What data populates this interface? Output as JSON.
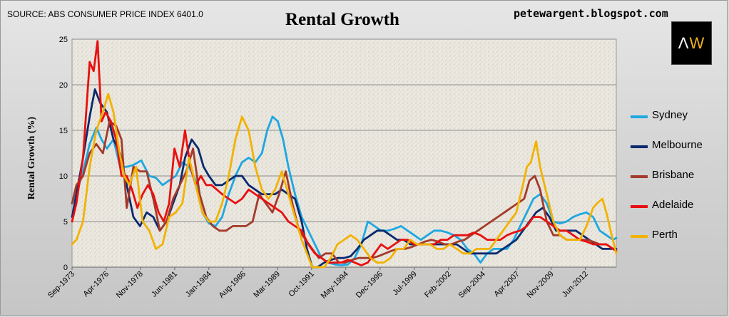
{
  "header": {
    "source": "SOURCE: ABS CONSUMER PRICE INDEX 6401.0",
    "website": "petewargent.blogspot.com",
    "logo_text": "AW"
  },
  "chart_data": {
    "type": "line",
    "title": "Rental Growth",
    "xlabel": "",
    "ylabel": "Rental Growth (%)",
    "ylim": [
      0,
      25
    ],
    "yticks": [
      0,
      5,
      10,
      15,
      20,
      25
    ],
    "xlim": [
      1973.67,
      2014.75
    ],
    "xticks": [
      {
        "label": "Sep-1973",
        "x": 1973.67
      },
      {
        "label": "Apr-1976",
        "x": 1976.25
      },
      {
        "label": "Nov-1978",
        "x": 1978.83
      },
      {
        "label": "Jun-1981",
        "x": 1981.42
      },
      {
        "label": "Jan-1984",
        "x": 1984.0
      },
      {
        "label": "Aug-1986",
        "x": 1986.58
      },
      {
        "label": "Mar-1989",
        "x": 1989.17
      },
      {
        "label": "Oct-1991",
        "x": 1991.75
      },
      {
        "label": "May-1994",
        "x": 1994.33
      },
      {
        "label": "Dec-1996",
        "x": 1996.92
      },
      {
        "label": "Jul-1999",
        "x": 1999.5
      },
      {
        "label": "Feb-2002",
        "x": 2002.08
      },
      {
        "label": "Sep-2004",
        "x": 2004.67
      },
      {
        "label": "Apr-2007",
        "x": 2007.25
      },
      {
        "label": "Nov-2009",
        "x": 2009.83
      },
      {
        "label": "Jun-2012",
        "x": 2012.42
      }
    ],
    "grid": "horizontal",
    "legend_position": "right",
    "series": [
      {
        "name": "Sydney",
        "color": "#1ea7e1",
        "x": [
          1973.67,
          1974.0,
          1974.5,
          1975.0,
          1975.5,
          1975.9,
          1976.3,
          1976.8,
          1977.3,
          1977.8,
          1978.3,
          1978.9,
          1979.5,
          1980.0,
          1980.5,
          1981.0,
          1981.5,
          1982.0,
          1982.5,
          1983.0,
          1983.5,
          1984.0,
          1984.5,
          1985.0,
          1985.5,
          1986.0,
          1986.5,
          1987.0,
          1987.5,
          1988.0,
          1988.4,
          1988.8,
          1989.2,
          1989.6,
          1990.0,
          1990.5,
          1991.0,
          1991.5,
          1992.0,
          1992.5,
          1993.0,
          1993.5,
          1994.0,
          1994.5,
          1995.0,
          1995.5,
          1996.0,
          1996.5,
          1997.0,
          1997.5,
          1998.0,
          1998.5,
          1999.0,
          1999.5,
          2000.0,
          2000.5,
          2001.0,
          2001.5,
          2002.0,
          2002.5,
          2003.0,
          2003.5,
          2004.0,
          2004.5,
          2005.0,
          2005.5,
          2006.0,
          2006.5,
          2007.0,
          2007.5,
          2008.0,
          2008.5,
          2009.0,
          2009.5,
          2010.0,
          2010.5,
          2011.0,
          2011.5,
          2012.0,
          2012.5,
          2013.0,
          2013.5,
          2014.0,
          2014.5,
          2014.75
        ],
        "y": [
          7.0,
          8.0,
          10.5,
          13.5,
          15.3,
          14.0,
          13.0,
          14.0,
          11.0,
          11.0,
          11.2,
          11.7,
          10.0,
          9.8,
          9.0,
          9.5,
          10.0,
          11.5,
          11.0,
          9.5,
          6.0,
          4.8,
          4.5,
          5.5,
          8.0,
          10.0,
          11.5,
          12.0,
          11.5,
          12.5,
          15.0,
          16.5,
          16.0,
          14.0,
          11.0,
          8.0,
          5.5,
          4.0,
          2.5,
          1.0,
          0.5,
          0.3,
          0.2,
          0.3,
          1.0,
          2.5,
          5.0,
          4.5,
          4.0,
          4.0,
          4.2,
          4.5,
          4.0,
          3.5,
          3.0,
          3.5,
          4.0,
          4.0,
          3.8,
          3.5,
          3.0,
          2.0,
          1.5,
          0.5,
          1.5,
          2.0,
          2.0,
          2.0,
          3.0,
          4.5,
          6.0,
          7.5,
          8.0,
          7.0,
          5.0,
          4.8,
          5.0,
          5.5,
          5.8,
          6.0,
          5.5,
          4.0,
          3.5,
          3.0,
          3.2
        ]
      },
      {
        "name": "Melbourne",
        "color": "#0a2a6e",
        "x": [
          1973.67,
          1974.0,
          1974.5,
          1975.0,
          1975.4,
          1975.8,
          1976.3,
          1976.8,
          1977.3,
          1977.8,
          1978.3,
          1978.8,
          1979.3,
          1979.8,
          1980.3,
          1980.8,
          1981.3,
          1981.8,
          1982.2,
          1982.7,
          1983.2,
          1983.6,
          1984.0,
          1984.5,
          1985.0,
          1985.5,
          1986.0,
          1986.5,
          1987.0,
          1987.5,
          1988.0,
          1988.5,
          1989.0,
          1989.5,
          1990.0,
          1990.5,
          1991.0,
          1991.4,
          1991.8,
          1992.2,
          1992.7,
          1993.2,
          1993.7,
          1994.2,
          1994.7,
          1995.2,
          1995.7,
          1996.2,
          1996.7,
          1997.2,
          1997.7,
          1998.2,
          1998.7,
          1999.2,
          1999.7,
          2000.2,
          2000.7,
          2001.2,
          2001.7,
          2002.2,
          2002.7,
          2003.2,
          2003.7,
          2004.2,
          2004.7,
          2005.2,
          2005.7,
          2006.2,
          2006.7,
          2007.2,
          2007.7,
          2008.2,
          2008.7,
          2009.2,
          2009.7,
          2010.2,
          2010.7,
          2011.2,
          2011.7,
          2012.2,
          2012.7,
          2013.2,
          2013.7,
          2014.2,
          2014.75
        ],
        "y": [
          5.5,
          8.0,
          12.0,
          16.5,
          19.5,
          18.0,
          17.0,
          14.0,
          12.5,
          9.0,
          5.5,
          4.5,
          6.0,
          5.5,
          4.0,
          5.0,
          7.0,
          9.0,
          12.0,
          14.0,
          13.0,
          11.0,
          10.0,
          9.0,
          9.0,
          9.5,
          10.0,
          10.0,
          9.0,
          8.5,
          8.0,
          8.0,
          8.0,
          8.5,
          8.0,
          7.5,
          5.0,
          2.0,
          0.0,
          0.0,
          0.5,
          0.8,
          1.0,
          1.0,
          1.2,
          2.0,
          3.0,
          3.5,
          4.0,
          4.0,
          3.5,
          3.0,
          3.0,
          2.5,
          2.5,
          2.5,
          2.5,
          2.5,
          2.5,
          2.5,
          2.5,
          2.0,
          1.5,
          1.5,
          1.5,
          1.5,
          1.5,
          2.0,
          2.5,
          3.0,
          4.0,
          5.0,
          6.0,
          6.5,
          5.5,
          4.0,
          4.0,
          4.0,
          4.0,
          3.5,
          3.0,
          2.5,
          2.0,
          2.0,
          2.0
        ]
      },
      {
        "name": "Brisbane",
        "color": "#a33a2a",
        "x": [
          1973.67,
          1974.0,
          1974.5,
          1975.0,
          1975.5,
          1976.0,
          1976.5,
          1977.0,
          1977.4,
          1977.8,
          1978.3,
          1978.8,
          1979.3,
          1979.8,
          1980.3,
          1980.8,
          1981.3,
          1981.8,
          1982.3,
          1982.8,
          1983.3,
          1983.8,
          1984.3,
          1984.8,
          1985.3,
          1985.8,
          1986.3,
          1986.8,
          1987.3,
          1987.8,
          1988.3,
          1988.8,
          1989.3,
          1989.8,
          1990.3,
          1990.8,
          1991.3,
          1991.8,
          1992.3,
          1992.8,
          1993.3,
          1993.8,
          1994.3,
          1994.8,
          1995.3,
          1995.8,
          1996.3,
          1996.8,
          1997.3,
          1997.8,
          1998.3,
          1998.8,
          1999.3,
          1999.8,
          2000.3,
          2000.8,
          2001.3,
          2001.8,
          2002.3,
          2002.8,
          2003.3,
          2003.8,
          2004.3,
          2004.8,
          2005.3,
          2005.8,
          2006.3,
          2006.8,
          2007.3,
          2007.8,
          2008.2,
          2008.6,
          2009.0,
          2009.5,
          2010.0,
          2010.5,
          2011.0,
          2011.5,
          2012.0,
          2012.5,
          2013.0,
          2013.5,
          2014.0,
          2014.5,
          2014.75
        ],
        "y": [
          7.0,
          9.0,
          10.0,
          12.5,
          13.5,
          12.5,
          16.0,
          15.5,
          14.0,
          6.5,
          11.0,
          10.5,
          10.5,
          7.5,
          4.0,
          5.0,
          7.5,
          9.0,
          10.5,
          13.0,
          8.0,
          5.5,
          4.5,
          4.0,
          4.0,
          4.5,
          4.5,
          4.5,
          5.0,
          8.0,
          7.0,
          6.0,
          8.0,
          10.5,
          7.0,
          4.0,
          3.0,
          2.0,
          1.0,
          1.5,
          1.5,
          0.5,
          0.5,
          0.8,
          1.0,
          1.0,
          1.0,
          1.2,
          1.5,
          1.8,
          2.0,
          2.0,
          2.2,
          2.5,
          2.8,
          3.0,
          2.8,
          2.5,
          2.5,
          2.8,
          3.0,
          3.5,
          4.0,
          4.5,
          5.0,
          5.5,
          6.0,
          6.5,
          7.0,
          7.5,
          9.5,
          10.0,
          8.5,
          5.0,
          3.5,
          3.5,
          3.0,
          3.0,
          3.0,
          3.0,
          2.8,
          2.5,
          2.5,
          2.0,
          1.8
        ]
      },
      {
        "name": "Adelaide",
        "color": "#e81010",
        "x": [
          1973.67,
          1974.0,
          1974.5,
          1975.0,
          1975.3,
          1975.6,
          1975.9,
          1976.2,
          1976.6,
          1977.0,
          1977.4,
          1977.8,
          1978.2,
          1978.6,
          1979.0,
          1979.4,
          1979.8,
          1980.2,
          1980.6,
          1981.0,
          1981.4,
          1981.8,
          1982.2,
          1982.6,
          1983.0,
          1983.4,
          1983.8,
          1984.2,
          1984.6,
          1985.0,
          1985.5,
          1986.0,
          1986.5,
          1987.0,
          1987.5,
          1988.0,
          1988.5,
          1989.0,
          1989.5,
          1990.0,
          1990.5,
          1991.0,
          1991.5,
          1992.0,
          1992.5,
          1993.0,
          1993.5,
          1994.0,
          1994.5,
          1995.0,
          1995.5,
          1996.0,
          1996.5,
          1997.0,
          1997.5,
          1998.0,
          1998.5,
          1999.0,
          1999.5,
          2000.0,
          2000.5,
          2001.0,
          2001.5,
          2002.0,
          2002.5,
          2003.0,
          2003.5,
          2004.0,
          2004.5,
          2005.0,
          2005.5,
          2006.0,
          2006.5,
          2007.0,
          2007.5,
          2008.0,
          2008.5,
          2009.0,
          2009.5,
          2010.0,
          2010.5,
          2011.0,
          2011.5,
          2012.0,
          2012.5,
          2013.0,
          2013.5,
          2014.0,
          2014.5,
          2014.75
        ],
        "y": [
          5.0,
          7.0,
          12.0,
          22.5,
          21.5,
          24.8,
          16.0,
          17.0,
          16.0,
          14.0,
          10.0,
          10.0,
          8.5,
          6.5,
          8.0,
          9.0,
          8.0,
          6.0,
          5.0,
          7.0,
          13.0,
          11.0,
          15.0,
          11.0,
          9.0,
          10.0,
          9.0,
          9.0,
          8.5,
          8.0,
          7.5,
          7.0,
          7.5,
          8.5,
          8.0,
          7.5,
          7.0,
          6.5,
          6.0,
          5.0,
          4.5,
          4.0,
          2.5,
          1.5,
          1.0,
          0.5,
          0.5,
          0.5,
          0.8,
          0.5,
          0.2,
          0.5,
          1.5,
          2.5,
          2.0,
          2.5,
          3.0,
          3.0,
          2.5,
          2.5,
          2.5,
          2.5,
          3.0,
          3.0,
          3.5,
          3.5,
          3.5,
          3.8,
          3.5,
          3.0,
          3.0,
          3.0,
          3.5,
          3.8,
          4.0,
          4.5,
          5.5,
          5.5,
          5.0,
          4.5,
          4.0,
          4.0,
          3.5,
          3.0,
          2.8,
          2.5,
          2.5,
          2.5,
          2.0,
          1.8
        ]
      },
      {
        "name": "Perth",
        "color": "#f2b200",
        "x": [
          1973.67,
          1974.0,
          1974.5,
          1975.0,
          1975.5,
          1976.0,
          1976.4,
          1976.8,
          1977.2,
          1977.6,
          1978.0,
          1978.5,
          1979.0,
          1979.5,
          1980.0,
          1980.5,
          1981.0,
          1981.5,
          1982.0,
          1982.5,
          1983.0,
          1983.5,
          1984.0,
          1984.5,
          1985.0,
          1985.5,
          1986.0,
          1986.5,
          1987.0,
          1987.5,
          1988.0,
          1988.5,
          1989.0,
          1989.5,
          1990.0,
          1990.5,
          1991.0,
          1991.4,
          1991.8,
          1992.2,
          1992.7,
          1993.2,
          1993.7,
          1994.2,
          1994.7,
          1995.2,
          1995.7,
          1996.2,
          1996.7,
          1997.2,
          1997.7,
          1998.2,
          1998.7,
          1999.2,
          1999.7,
          2000.2,
          2000.7,
          2001.2,
          2001.7,
          2002.2,
          2002.7,
          2003.2,
          2003.7,
          2004.2,
          2004.7,
          2005.2,
          2005.7,
          2006.2,
          2006.7,
          2007.2,
          2007.7,
          2008.0,
          2008.3,
          2008.7,
          2009.0,
          2009.5,
          2010.0,
          2010.5,
          2011.0,
          2011.5,
          2012.0,
          2012.5,
          2013.0,
          2013.3,
          2013.7,
          2014.0,
          2014.4,
          2014.75
        ],
        "y": [
          2.5,
          3.0,
          5.0,
          11.0,
          15.0,
          17.0,
          19.0,
          17.0,
          13.0,
          10.0,
          9.0,
          11.0,
          5.0,
          4.0,
          2.0,
          2.5,
          5.5,
          6.0,
          7.0,
          12.0,
          9.0,
          6.0,
          5.0,
          5.0,
          7.0,
          10.0,
          14.0,
          16.5,
          15.0,
          11.0,
          8.5,
          7.5,
          8.5,
          10.5,
          8.0,
          5.5,
          3.0,
          1.5,
          0.0,
          0.0,
          0.0,
          1.0,
          2.5,
          3.0,
          3.5,
          3.0,
          2.0,
          1.0,
          0.5,
          0.5,
          1.0,
          2.0,
          2.0,
          3.0,
          2.5,
          2.5,
          2.5,
          2.0,
          2.0,
          2.5,
          2.0,
          1.5,
          1.5,
          2.0,
          2.0,
          2.0,
          3.0,
          4.0,
          5.0,
          6.0,
          9.0,
          11.0,
          11.5,
          13.8,
          11.0,
          8.0,
          5.0,
          3.5,
          3.0,
          3.0,
          3.0,
          4.5,
          6.5,
          7.0,
          7.5,
          6.0,
          3.5,
          1.5
        ]
      }
    ]
  }
}
